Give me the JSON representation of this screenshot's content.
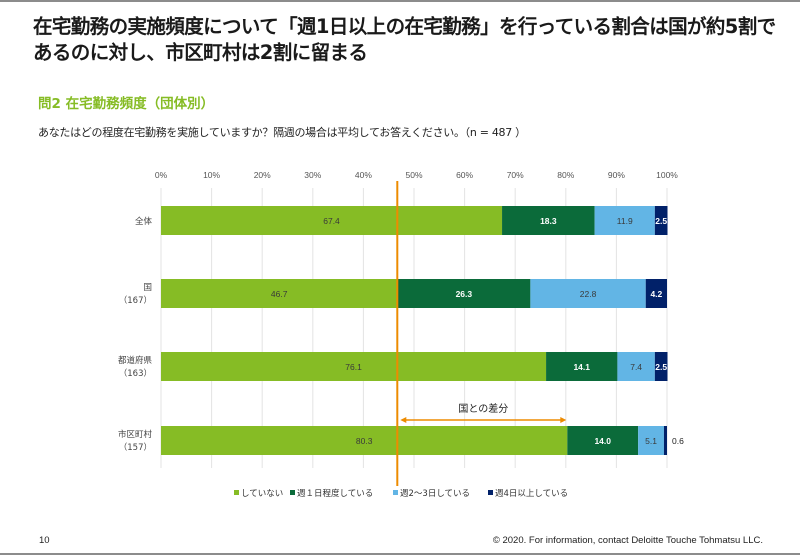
{
  "header": {
    "title": "在宅勤務の実施頻度について「週1日以上の在宅勤務」を行っている割合は国が約5割であるのに対し、市区町村は2割に留まる",
    "subtitle": "問2 在宅勤務頻度（団体別）",
    "question": "あなたはどの程度在宅勤務を実施していますか？隔週の場合は平均してお答えください。（n = 487 ）"
  },
  "footer": {
    "page_number": "10",
    "copyright": "© 2020. For information, contact Deloitte Touche Tohmatsu LLC."
  },
  "chart_data": {
    "type": "bar",
    "orientation": "horizontal-stacked-100",
    "title": "問2 在宅勤務頻度（団体別）",
    "xlabel": "",
    "ylabel": "",
    "xlim": [
      0,
      100
    ],
    "x_ticks": [
      "0%",
      "10%",
      "20%",
      "30%",
      "40%",
      "50%",
      "60%",
      "70%",
      "80%",
      "90%",
      "100%"
    ],
    "grid": true,
    "legend_position": "bottom",
    "categories": [
      {
        "label": "全体",
        "sub": ""
      },
      {
        "label": "国",
        "sub": "（167）"
      },
      {
        "label": "都道府県",
        "sub": "（163）"
      },
      {
        "label": "市区町村",
        "sub": "（157）"
      }
    ],
    "series": [
      {
        "name": "していない",
        "color": "#86bc25",
        "label_color": "#3a3a3a",
        "values": [
          67.4,
          46.7,
          76.1,
          80.3
        ]
      },
      {
        "name": "週１日程度している",
        "color": "#0b6b3a",
        "label_color": "#ffffff",
        "values": [
          18.3,
          26.3,
          14.1,
          14.0
        ]
      },
      {
        "name": "週2～3日している",
        "color": "#62b5e5",
        "label_color": "#3a3a3a",
        "values": [
          11.9,
          22.8,
          7.4,
          5.1
        ]
      },
      {
        "name": "週4日以上している",
        "color": "#012169",
        "label_color": "#ffffff",
        "values": [
          2.5,
          4.2,
          2.5,
          0.6
        ]
      }
    ],
    "annotations": {
      "reference_line": {
        "value": 46.7,
        "color": "#ed8b00"
      },
      "difference_arrow": {
        "from": 46.7,
        "to": 80.3,
        "row": "市区町村",
        "label": "国との差分",
        "color": "#ed8b00"
      },
      "outside_label": {
        "row": "市区町村",
        "series": "週4日以上している",
        "text": "0.6"
      }
    }
  }
}
